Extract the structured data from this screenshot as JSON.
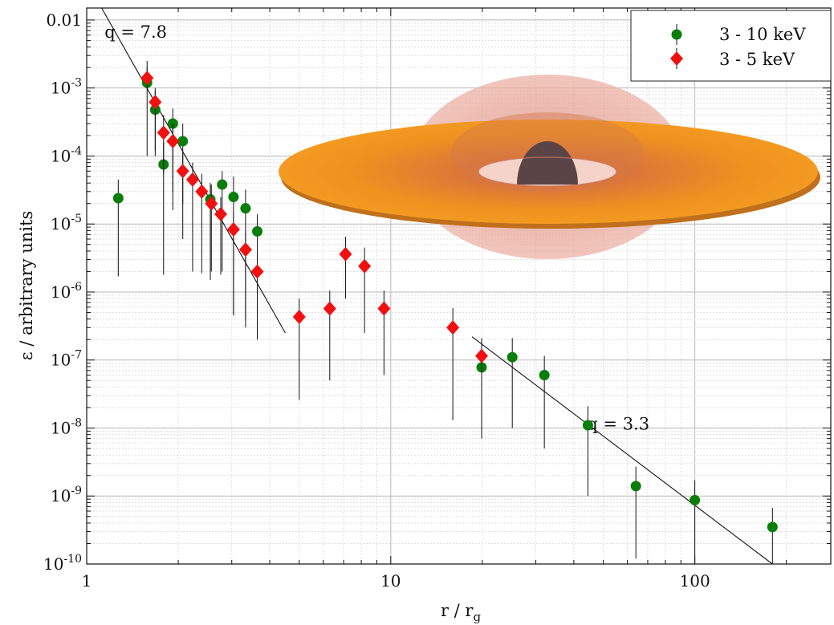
{
  "chart_data": {
    "type": "scatter",
    "xscale": "log",
    "yscale": "log",
    "xlim": [
      1,
      280
    ],
    "ylim": [
      1e-10,
      0.015
    ],
    "xlabel": "r / r",
    "xlabel_sub": "g",
    "ylabel": "ε / arbitrary units",
    "grid": true,
    "legend_position": "top-right",
    "x_ticks": [
      {
        "value": 1,
        "label": "1"
      },
      {
        "value": 10,
        "label": "10"
      },
      {
        "value": 100,
        "label": "100"
      }
    ],
    "y_ticks": [
      {
        "value": 0.01,
        "label": "0.01",
        "exp": ""
      },
      {
        "value": 0.001,
        "label": "10",
        "exp": "-3"
      },
      {
        "value": 0.0001,
        "label": "10",
        "exp": "-4"
      },
      {
        "value": 1e-05,
        "label": "10",
        "exp": "-5"
      },
      {
        "value": 1e-06,
        "label": "10",
        "exp": "-6"
      },
      {
        "value": 1e-07,
        "label": "10",
        "exp": "-7"
      },
      {
        "value": 1e-08,
        "label": "10",
        "exp": "-8"
      },
      {
        "value": 1e-09,
        "label": "10",
        "exp": "-9"
      },
      {
        "value": 1e-10,
        "label": "10",
        "exp": "-10"
      }
    ],
    "series": [
      {
        "name": "3 - 10 keV",
        "color": "#0a7d0a",
        "marker": "circle",
        "points": [
          {
            "x": 1.27,
            "y": 2.4e-05,
            "ylo": 1.7e-06,
            "yhi": 4.5e-05
          },
          {
            "x": 1.58,
            "y": 0.0012,
            "ylo": 0.0012,
            "yhi": 0.002
          },
          {
            "x": 1.68,
            "y": 0.00048,
            "ylo": 0.00012,
            "yhi": 0.0009
          },
          {
            "x": 1.79,
            "y": 7.5e-05,
            "ylo": 1.8e-06,
            "yhi": 0.00016
          },
          {
            "x": 1.92,
            "y": 0.0003,
            "ylo": 3e-05,
            "yhi": 0.0005
          },
          {
            "x": 2.07,
            "y": 0.000165,
            "ylo": 2e-05,
            "yhi": 0.0003
          },
          {
            "x": 2.55,
            "y": 2.3e-05,
            "ylo": 1.5e-06,
            "yhi": 4e-05
          },
          {
            "x": 2.79,
            "y": 3.8e-05,
            "ylo": 2e-06,
            "yhi": 6e-05
          },
          {
            "x": 3.04,
            "y": 2.5e-05,
            "ylo": 4.8e-07,
            "yhi": 5e-05
          },
          {
            "x": 3.33,
            "y": 1.7e-05,
            "ylo": 4e-07,
            "yhi": 3.2e-05
          },
          {
            "x": 3.64,
            "y": 7.8e-06,
            "ylo": 2e-07,
            "yhi": 1.4e-05
          },
          {
            "x": 19.9,
            "y": 7.8e-08,
            "ylo": 7e-09,
            "yhi": 1.5e-07
          },
          {
            "x": 25.1,
            "y": 1.1e-07,
            "ylo": 1e-08,
            "yhi": 2.1e-07
          },
          {
            "x": 32.0,
            "y": 6e-08,
            "ylo": 5e-09,
            "yhi": 1.15e-07
          },
          {
            "x": 44.5,
            "y": 1.1e-08,
            "ylo": 1e-09,
            "yhi": 2.1e-08
          },
          {
            "x": 64.0,
            "y": 1.4e-09,
            "ylo": 1.2e-10,
            "yhi": 2.7e-09
          },
          {
            "x": 100.0,
            "y": 8.7e-10,
            "ylo": 1e-10,
            "yhi": 1.7e-09
          },
          {
            "x": 180.0,
            "y": 3.5e-10,
            "ylo": 1e-10,
            "yhi": 6.7e-10
          }
        ]
      },
      {
        "name": "3 - 5 keV",
        "color": "#f01010",
        "marker": "diamond",
        "points": [
          {
            "x": 1.58,
            "y": 0.0014,
            "ylo": 0.0001,
            "yhi": 0.0025
          },
          {
            "x": 1.68,
            "y": 0.00062,
            "ylo": 0.0001,
            "yhi": 0.001
          },
          {
            "x": 1.79,
            "y": 0.00022,
            "ylo": 5.5e-05,
            "yhi": 0.0004
          },
          {
            "x": 1.92,
            "y": 0.000165,
            "ylo": 1.6e-05,
            "yhi": 0.0003
          },
          {
            "x": 2.07,
            "y": 6e-05,
            "ylo": 6e-06,
            "yhi": 0.00011
          },
          {
            "x": 2.23,
            "y": 4.5e-05,
            "ylo": 2e-06,
            "yhi": 8e-05
          },
          {
            "x": 2.39,
            "y": 3e-05,
            "ylo": 1.9e-06,
            "yhi": 5.5e-05
          },
          {
            "x": 2.57,
            "y": 2e-05,
            "ylo": 2e-06,
            "yhi": 3.8e-05
          },
          {
            "x": 2.76,
            "y": 1.4e-05,
            "ylo": 1.8e-06,
            "yhi": 2.5e-05
          },
          {
            "x": 3.04,
            "y": 8.3e-06,
            "ylo": 4.5e-07,
            "yhi": 1.5e-05
          },
          {
            "x": 3.33,
            "y": 4.2e-06,
            "ylo": 3e-07,
            "yhi": 8e-06
          },
          {
            "x": 3.64,
            "y": 2e-06,
            "ylo": 2e-07,
            "yhi": 4e-06
          },
          {
            "x": 5.0,
            "y": 4.3e-07,
            "ylo": 2.6e-08,
            "yhi": 8e-07
          },
          {
            "x": 6.3,
            "y": 5.7e-07,
            "ylo": 5e-08,
            "yhi": 1.05e-06
          },
          {
            "x": 7.1,
            "y": 3.6e-06,
            "ylo": 8e-07,
            "yhi": 6.5e-06
          },
          {
            "x": 8.2,
            "y": 2.4e-06,
            "ylo": 2.5e-07,
            "yhi": 4.5e-06
          },
          {
            "x": 9.5,
            "y": 5.7e-07,
            "ylo": 6e-08,
            "yhi": 1.05e-06
          },
          {
            "x": 16.0,
            "y": 3e-07,
            "ylo": 1.3e-08,
            "yhi": 5.8e-07
          },
          {
            "x": 19.9,
            "y": 1.15e-07,
            "ylo": 1.5e-08,
            "yhi": 2.1e-07
          }
        ]
      }
    ],
    "fit_lines": [
      {
        "label": "q = 7.8",
        "x": [
          1.08,
          4.5
        ],
        "y": [
          0.02,
          2.5e-07
        ],
        "label_x": 1.45,
        "label_y": 0.0055
      },
      {
        "label": "q = 3.3",
        "x": [
          18.5,
          180
        ],
        "y": [
          2.2e-07,
          1e-10
        ],
        "label_x": 56,
        "label_y": 9.5e-09
      }
    ],
    "inset": {
      "description": "",
      "colors": {
        "disk": "#f0921e",
        "disk_edge": "#c87818",
        "corona": "#e8a898",
        "hole": "#5a4446"
      }
    }
  }
}
